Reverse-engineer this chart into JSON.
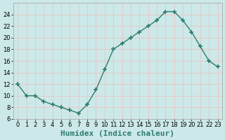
{
  "x": [
    0,
    1,
    2,
    3,
    4,
    5,
    6,
    7,
    8,
    9,
    10,
    11,
    12,
    13,
    14,
    15,
    16,
    17,
    18,
    19,
    20,
    21,
    22,
    23
  ],
  "y": [
    12,
    10,
    10,
    9,
    8.5,
    8,
    7.5,
    7,
    8.5,
    11,
    14.5,
    18,
    19,
    20,
    21,
    22,
    23,
    24.5,
    24.5,
    23,
    21,
    18.5,
    16,
    15
  ],
  "line_color": "#2d7d6e",
  "marker": "+",
  "marker_size": 4,
  "marker_lw": 1.2,
  "bg_color": "#cce8e8",
  "grid_color": "#e8c8c8",
  "xlabel": "Humidex (Indice chaleur)",
  "xlabel_fontsize": 8,
  "ylim": [
    6,
    26
  ],
  "xlim": [
    -0.5,
    23.5
  ],
  "yticks": [
    6,
    8,
    10,
    12,
    14,
    16,
    18,
    20,
    22,
    24
  ],
  "xticks": [
    0,
    1,
    2,
    3,
    4,
    5,
    6,
    7,
    8,
    9,
    10,
    11,
    12,
    13,
    14,
    15,
    16,
    17,
    18,
    19,
    20,
    21,
    22,
    23
  ],
  "tick_fontsize": 6,
  "line_width": 1.0,
  "spine_color": "#aaaaaa"
}
